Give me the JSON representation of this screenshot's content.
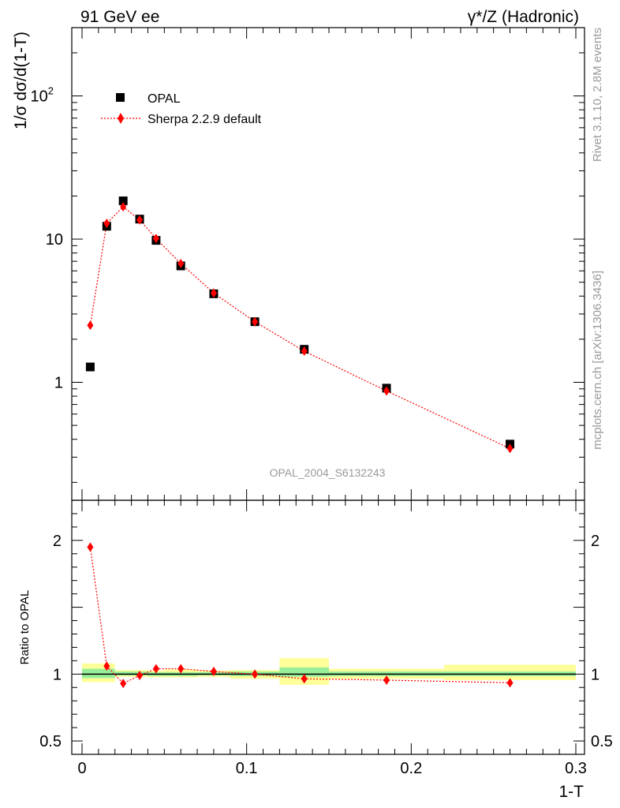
{
  "header": {
    "left_title": "91 GeV ee",
    "right_title": "γ*/Z (Hadronic)"
  },
  "side_labels": {
    "rivet": "Rivet 3.1.10,  2.8M events",
    "mcplots": "mcplots.cern.ch [arXiv:1306.3436]"
  },
  "watermark": "OPAL_2004_S6132243",
  "chart_data": {
    "type": "scatter",
    "xlabel": "1-T",
    "ylabel": "1/σ dσ/d(1-T)",
    "ratio_ylabel": "Ratio to OPAL",
    "xlim": [
      0,
      0.3
    ],
    "ylim": [
      0.15,
      300
    ],
    "y_scale": "log",
    "ratio_ylim": [
      0.4,
      2.3
    ],
    "grid": false,
    "legend_position": "top-left",
    "x_ticks": [
      {
        "value": 0,
        "label": "0"
      },
      {
        "value": 0.1,
        "label": "0.1"
      },
      {
        "value": 0.2,
        "label": "0.2"
      },
      {
        "value": 0.3,
        "label": "0.3"
      }
    ],
    "y_ticks": [
      {
        "value": 1,
        "label": "1"
      },
      {
        "value": 10,
        "label": "10"
      },
      {
        "value": 100,
        "label": "10",
        "sup": "2"
      }
    ],
    "ratio_ticks": [
      {
        "value": 0.5,
        "label": "0.5"
      },
      {
        "value": 1,
        "label": "1"
      },
      {
        "value": 2,
        "label": "2"
      }
    ],
    "series": [
      {
        "name": "OPAL",
        "color": "#000000",
        "marker": "square",
        "x": [
          0.005,
          0.015,
          0.025,
          0.035,
          0.045,
          0.06,
          0.08,
          0.105,
          0.135,
          0.185,
          0.26
        ],
        "y": [
          1.28,
          12.3,
          18.5,
          13.8,
          9.8,
          6.5,
          4.15,
          2.65,
          1.7,
          0.91,
          0.37
        ]
      },
      {
        "name": "Sherpa 2.2.9 default",
        "color": "#ff0000",
        "marker": "diamond",
        "line": "dotted",
        "x": [
          0.005,
          0.015,
          0.025,
          0.035,
          0.045,
          0.06,
          0.08,
          0.105,
          0.135,
          0.185,
          0.26
        ],
        "y": [
          2.5,
          12.9,
          16.8,
          13.6,
          10.1,
          6.75,
          4.2,
          2.65,
          1.65,
          0.87,
          0.345
        ],
        "ratio": [
          1.95,
          1.06,
          0.93,
          0.99,
          1.04,
          1.04,
          1.02,
          1.0,
          0.965,
          0.955,
          0.935
        ]
      }
    ],
    "uncertainty_bands": [
      {
        "x0": 0.0,
        "x1": 0.02,
        "inner": [
          0.97,
          1.04
        ],
        "outer": [
          0.94,
          1.08
        ]
      },
      {
        "x0": 0.02,
        "x1": 0.04,
        "inner": [
          0.99,
          1.02
        ],
        "outer": [
          0.98,
          1.03
        ]
      },
      {
        "x0": 0.04,
        "x1": 0.05,
        "inner": [
          0.985,
          1.015
        ],
        "outer": [
          0.975,
          1.025
        ]
      },
      {
        "x0": 0.05,
        "x1": 0.07,
        "inner": [
          0.985,
          1.015
        ],
        "outer": [
          0.975,
          1.035
        ]
      },
      {
        "x0": 0.07,
        "x1": 0.09,
        "inner": [
          0.99,
          1.015
        ],
        "outer": [
          0.98,
          1.025
        ]
      },
      {
        "x0": 0.09,
        "x1": 0.12,
        "inner": [
          0.985,
          1.02
        ],
        "outer": [
          0.965,
          1.03
        ]
      },
      {
        "x0": 0.12,
        "x1": 0.15,
        "inner": [
          0.98,
          1.05
        ],
        "outer": [
          0.92,
          1.12
        ]
      },
      {
        "x0": 0.15,
        "x1": 0.22,
        "inner": [
          0.985,
          1.02
        ],
        "outer": [
          0.965,
          1.04
        ]
      },
      {
        "x0": 0.22,
        "x1": 0.3,
        "inner": [
          0.985,
          1.02
        ],
        "outer": [
          0.955,
          1.07
        ]
      }
    ]
  }
}
